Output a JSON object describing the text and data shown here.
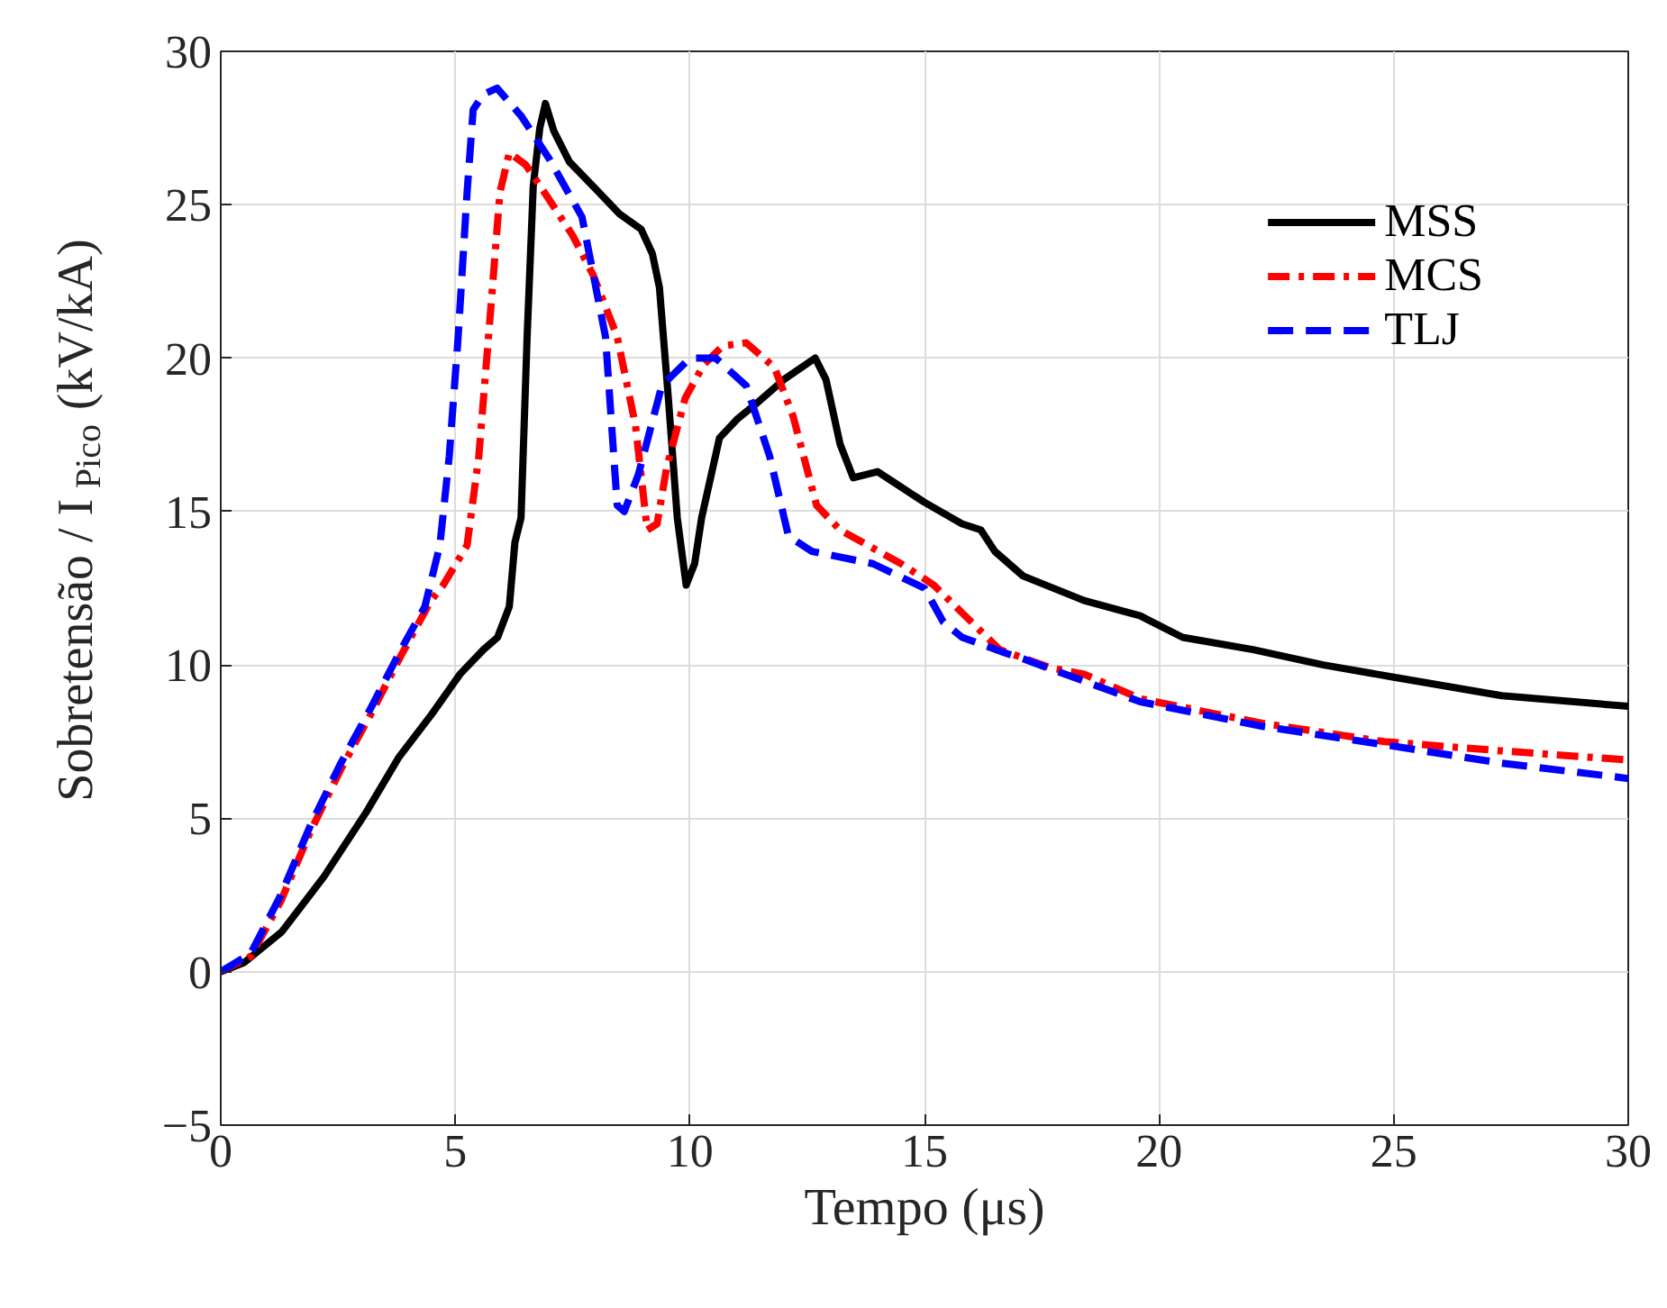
{
  "chart_data": {
    "type": "line",
    "xlabel": "Tempo (μs)",
    "ylabel": "Sobretensão / I$_{Pico}$ (kV/kA)",
    "xlim": [
      0,
      30
    ],
    "ylim": [
      -5,
      30
    ],
    "xticks": [
      0,
      5,
      10,
      15,
      20,
      25,
      30
    ],
    "yticks": [
      -5,
      0,
      5,
      10,
      15,
      20,
      25,
      30
    ],
    "grid": true,
    "legend": "top right",
    "marker": "none",
    "series": [
      {
        "name": "MSS",
        "color": "#000000",
        "line_style": "solid",
        "x": [
          0,
          0.5,
          1.3,
          2.2,
          3.1,
          3.8,
          4.5,
          5.1,
          5.6,
          5.9,
          6.15,
          6.27,
          6.4,
          6.53,
          6.66,
          6.8,
          6.92,
          7.1,
          7.43,
          8.0,
          8.5,
          8.96,
          9.2,
          9.35,
          9.54,
          9.73,
          9.92,
          10.1,
          10.25,
          10.63,
          11.0,
          11.4,
          12.0,
          12.67,
          12.9,
          13.2,
          13.48,
          14.0,
          14.5,
          15.0,
          15.8,
          16.2,
          16.5,
          17.1,
          18.4,
          19.6,
          20.5,
          22.0,
          23.5,
          25.0,
          27.3,
          30.0
        ],
        "values": [
          0,
          0.3,
          1.3,
          3.1,
          5.2,
          7.0,
          8.4,
          9.7,
          10.5,
          10.9,
          11.9,
          14.0,
          14.8,
          20.7,
          25.6,
          27.5,
          28.3,
          27.4,
          26.4,
          25.5,
          24.7,
          24.2,
          23.4,
          22.3,
          18.7,
          14.8,
          12.6,
          13.3,
          14.8,
          17.4,
          18.0,
          18.5,
          19.3,
          20.0,
          19.3,
          17.2,
          16.1,
          16.3,
          15.8,
          15.3,
          14.6,
          14.4,
          13.7,
          12.9,
          12.1,
          11.6,
          10.9,
          10.5,
          10.0,
          9.6,
          9.0,
          8.65
        ]
      },
      {
        "name": "MCS",
        "color": "#ff0000",
        "line_style": "dashdot",
        "x": [
          0,
          0.64,
          1.28,
          1.92,
          2.56,
          3.2,
          3.84,
          4.48,
          4.74,
          5.25,
          5.5,
          5.76,
          5.95,
          6.15,
          6.5,
          6.9,
          7.5,
          7.94,
          8.45,
          8.84,
          9.09,
          9.3,
          9.5,
          9.9,
          10.3,
          10.7,
          11.2,
          11.8,
          12.2,
          12.7,
          13.2,
          14.5,
          15.2,
          15.8,
          16.6,
          17.7,
          18.4,
          19.6,
          22.2,
          24.8,
          27.3,
          30.0
        ],
        "values": [
          0,
          0.5,
          2.3,
          4.6,
          6.6,
          8.4,
          10.3,
          12.1,
          12.6,
          13.9,
          16.8,
          21.7,
          25.4,
          26.7,
          26.3,
          25.4,
          24.0,
          22.7,
          20.7,
          17.8,
          14.4,
          14.6,
          16.4,
          18.7,
          19.8,
          20.4,
          20.5,
          19.7,
          18.1,
          15.2,
          14.4,
          13.3,
          12.6,
          11.7,
          10.5,
          9.9,
          9.7,
          8.9,
          8.1,
          7.5,
          7.2,
          6.9
        ]
      },
      {
        "name": "TLJ",
        "color": "#0000ff",
        "line_style": "dashed",
        "x": [
          0,
          0.64,
          1.28,
          1.92,
          2.56,
          3.2,
          3.84,
          4.35,
          4.67,
          4.87,
          5.06,
          5.25,
          5.38,
          5.6,
          5.89,
          6.4,
          7.0,
          7.7,
          8.2,
          8.45,
          8.6,
          8.9,
          9.4,
          10.0,
          10.55,
          11.2,
          11.7,
          12.1,
          12.6,
          13.9,
          15.0,
          15.4,
          15.8,
          16.7,
          17.1,
          19.6,
          22.2,
          24.8,
          27.3,
          30.0
        ],
        "values": [
          0,
          0.6,
          2.5,
          4.8,
          6.8,
          8.6,
          10.5,
          11.9,
          13.9,
          16.8,
          20.7,
          25.4,
          28.1,
          28.6,
          28.8,
          27.9,
          26.5,
          24.6,
          20.7,
          15.2,
          15.0,
          16.2,
          19.1,
          20.0,
          20.0,
          19.1,
          16.8,
          14.2,
          13.7,
          13.3,
          12.5,
          11.4,
          10.9,
          10.4,
          10.2,
          8.8,
          8.0,
          7.4,
          6.8,
          6.3
        ]
      }
    ]
  }
}
